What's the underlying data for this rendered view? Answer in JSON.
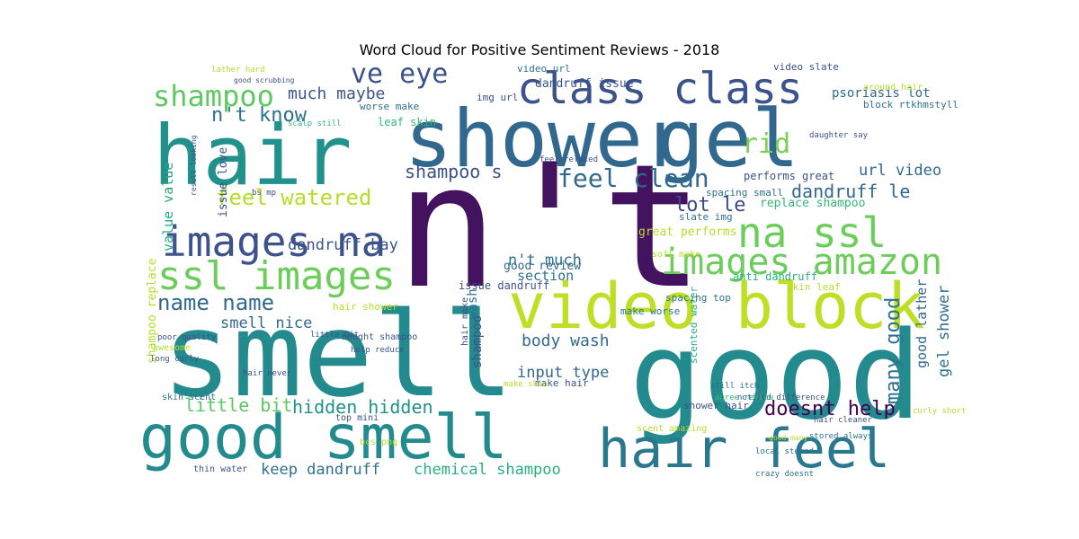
{
  "chart_data": {
    "type": "wordcloud",
    "title": "Word Cloud for Positive Sentiment Reviews - 2018",
    "background": "#ffffff",
    "colormap": "viridis",
    "words": [
      {
        "text": "n't",
        "weight": 1.0,
        "color": "#44135f"
      },
      {
        "text": "smell",
        "weight": 0.97,
        "color": "#238a8d"
      },
      {
        "text": "good",
        "weight": 0.96,
        "color": "#238a8d"
      },
      {
        "text": "shower",
        "weight": 0.82,
        "color": "#30688e"
      },
      {
        "text": "gel",
        "weight": 0.8,
        "color": "#30688e"
      },
      {
        "text": "hair",
        "weight": 0.78,
        "color": "#21918c"
      },
      {
        "text": "video block",
        "weight": 0.64,
        "color": "#bddf26"
      },
      {
        "text": "good smell",
        "weight": 0.6,
        "color": "#238a8d"
      },
      {
        "text": "hair feel",
        "weight": 0.5,
        "color": "#2a788e"
      },
      {
        "text": "class class",
        "weight": 0.45,
        "color": "#3b528b"
      },
      {
        "text": "images na",
        "weight": 0.42,
        "color": "#3b528b"
      },
      {
        "text": "ssl images",
        "weight": 0.38,
        "color": "#6ccd5a"
      },
      {
        "text": "na ssl",
        "weight": 0.35,
        "color": "#6ccd5a"
      },
      {
        "text": "images amazon",
        "weight": 0.32,
        "color": "#6ccd5a"
      },
      {
        "text": "ve eye",
        "weight": 0.26,
        "color": "#3b528b"
      },
      {
        "text": "shampoo",
        "weight": 0.24,
        "color": "#5ec962"
      },
      {
        "text": "feel clean",
        "weight": 0.22,
        "color": "#30688e"
      },
      {
        "text": "name name",
        "weight": 0.2,
        "color": "#31688e"
      },
      {
        "text": "feel watered",
        "weight": 0.19,
        "color": "#b5de2b"
      },
      {
        "text": "n't know",
        "weight": 0.18,
        "color": "#2c728e"
      },
      {
        "text": "rid",
        "weight": 0.18,
        "color": "#7ad151"
      },
      {
        "text": "much maybe",
        "weight": 0.16,
        "color": "#3b528b"
      },
      {
        "text": "dandruff le",
        "weight": 0.16,
        "color": "#31688e"
      },
      {
        "text": "doesnt help",
        "weight": 0.16,
        "color": "#440154"
      },
      {
        "text": "shampoo s",
        "weight": 0.15,
        "color": "#3b528b"
      },
      {
        "text": "lot le",
        "weight": 0.15,
        "color": "#3e4989"
      },
      {
        "text": "many good",
        "weight": 0.14,
        "color": "#2c728e"
      },
      {
        "text": "smell nice",
        "weight": 0.14,
        "color": "#31688e"
      },
      {
        "text": "hidden hidden",
        "weight": 0.14,
        "color": "#21918c"
      },
      {
        "text": "little bit",
        "weight": 0.14,
        "color": "#5ec962"
      },
      {
        "text": "input type",
        "weight": 0.14,
        "color": "#31688e"
      },
      {
        "text": "dandruff bay",
        "weight": 0.13,
        "color": "#3b528b"
      },
      {
        "text": "body wash",
        "weight": 0.13,
        "color": "#31688e"
      },
      {
        "text": "keep dandruff",
        "weight": 0.13,
        "color": "#2c728e"
      },
      {
        "text": "chemical shampoo",
        "weight": 0.13,
        "color": "#29af7f"
      },
      {
        "text": "url video",
        "weight": 0.13,
        "color": "#31688e"
      },
      {
        "text": "n't much",
        "weight": 0.12,
        "color": "#2c728e"
      },
      {
        "text": "value value",
        "weight": 0.12,
        "color": "#22a884"
      },
      {
        "text": "gel shower",
        "weight": 0.12,
        "color": "#2c728e"
      },
      {
        "text": "good lather",
        "weight": 0.12,
        "color": "#31688e"
      },
      {
        "text": "section",
        "weight": 0.11,
        "color": "#2c728e"
      },
      {
        "text": "good review",
        "weight": 0.1,
        "color": "#31688e"
      },
      {
        "text": "psoriasis lot",
        "weight": 0.1,
        "color": "#31688e"
      },
      {
        "text": "dandruff issue",
        "weight": 0.09,
        "color": "#3b528b"
      },
      {
        "text": "replace shampoo",
        "weight": 0.09,
        "color": "#35b779"
      },
      {
        "text": "great performs",
        "weight": 0.09,
        "color": "#b5de2b"
      },
      {
        "text": "issue love",
        "weight": 0.09,
        "color": "#3b528b"
      },
      {
        "text": "wash",
        "weight": 0.09,
        "color": "#2c728e"
      },
      {
        "text": "anti dandruff",
        "weight": 0.09,
        "color": "#29af7f"
      },
      {
        "text": "shampoo",
        "weight": 0.09,
        "color": "#3b528b"
      },
      {
        "text": "performs great",
        "weight": 0.09,
        "color": "#3b528b"
      },
      {
        "text": "shampoo replace",
        "weight": 0.08,
        "color": "#b5de2b"
      },
      {
        "text": "issue dandruff",
        "weight": 0.08,
        "color": "#3b528b"
      },
      {
        "text": "leaf skin",
        "weight": 0.08,
        "color": "#35b779"
      },
      {
        "text": "skin leaf",
        "weight": 0.08,
        "color": "#b5de2b"
      },
      {
        "text": "make worse",
        "weight": 0.08,
        "color": "#2c728e"
      },
      {
        "text": "hair shower",
        "weight": 0.08,
        "color": "#b5de2b"
      },
      {
        "text": "make hair",
        "weight": 0.08,
        "color": "#3b528b"
      },
      {
        "text": "scented water",
        "weight": 0.07,
        "color": "#29af7f"
      },
      {
        "text": "shower hair",
        "weight": 0.07,
        "color": "#3b528b"
      },
      {
        "text": "video url",
        "weight": 0.07,
        "color": "#2c728e"
      },
      {
        "text": "img url",
        "weight": 0.07,
        "color": "#3b528b"
      },
      {
        "text": "worse make",
        "weight": 0.07,
        "color": "#2c728e"
      },
      {
        "text": "video slate",
        "weight": 0.07,
        "color": "#3b528b"
      },
      {
        "text": "spacing small",
        "weight": 0.07,
        "color": "#2c728e"
      },
      {
        "text": "spacing top",
        "weight": 0.07,
        "color": "#2c728e"
      },
      {
        "text": "slate img",
        "weight": 0.07,
        "color": "#2c728e"
      },
      {
        "text": "block rtkhmstyll",
        "weight": 0.07,
        "color": "#2c728e"
      },
      {
        "text": "around hair",
        "weight": 0.06,
        "color": "#b5de2b"
      },
      {
        "text": "top mini",
        "weight": 0.06,
        "color": "#3b528b"
      },
      {
        "text": "thin water",
        "weight": 0.06,
        "color": "#3b528b"
      },
      {
        "text": "bought shampoo",
        "weight": 0.06,
        "color": "#3b528b"
      },
      {
        "text": "hair make",
        "weight": 0.06,
        "color": "#3b528b"
      },
      {
        "text": "soft make",
        "weight": 0.06,
        "color": "#b5de2b"
      },
      {
        "text": "scent amazing",
        "weight": 0.06,
        "color": "#b5de2b"
      },
      {
        "text": "awesome",
        "weight": 0.06,
        "color": "#b5de2b"
      },
      {
        "text": "skin scent",
        "weight": 0.06,
        "color": "#2c728e"
      },
      {
        "text": "bcs png",
        "weight": 0.06,
        "color": "#b5de2b"
      },
      {
        "text": "local stored",
        "weight": 0.06,
        "color": "#2c728e"
      },
      {
        "text": "crazy doesnt",
        "weight": 0.06,
        "color": "#2c728e"
      },
      {
        "text": "stored always",
        "weight": 0.06,
        "color": "#2c728e"
      },
      {
        "text": "noticed difference",
        "weight": 0.06,
        "color": "#3b528b"
      },
      {
        "text": "hair cleaner",
        "weight": 0.05,
        "color": "#3b528b"
      },
      {
        "text": "feel relaxed",
        "weight": 0.05,
        "color": "#3b528b"
      },
      {
        "text": "daughter say",
        "weight": 0.05,
        "color": "#3b528b"
      },
      {
        "text": "bs mp",
        "weight": 0.05,
        "color": "#3b528b"
      },
      {
        "text": "lather hard",
        "weight": 0.05,
        "color": "#b5de2b"
      },
      {
        "text": "scalp still",
        "weight": 0.05,
        "color": "#35b779"
      },
      {
        "text": "poor quality",
        "weight": 0.05,
        "color": "#3b528b"
      },
      {
        "text": "hair never",
        "weight": 0.05,
        "color": "#3b528b"
      },
      {
        "text": "little bit",
        "weight": 0.05,
        "color": "#3b528b"
      },
      {
        "text": "help reduce",
        "weight": 0.05,
        "color": "#3b528b"
      },
      {
        "text": "make skin",
        "weight": 0.05,
        "color": "#b5de2b"
      },
      {
        "text": "still itch",
        "weight": 0.05,
        "color": "#2c728e"
      },
      {
        "text": "agree review",
        "weight": 0.05,
        "color": "#35b779"
      },
      {
        "text": "curly short",
        "weight": 0.05,
        "color": "#b5de2b"
      },
      {
        "text": "long curly",
        "weight": 0.05,
        "color": "#3b528b"
      },
      {
        "text": "good scrubbing",
        "weight": 0.04,
        "color": "#3b528b"
      },
      {
        "text": "result looking",
        "weight": 0.04,
        "color": "#3b528b"
      },
      {
        "text": "good many",
        "weight": 0.04,
        "color": "#b5de2b"
      }
    ]
  }
}
